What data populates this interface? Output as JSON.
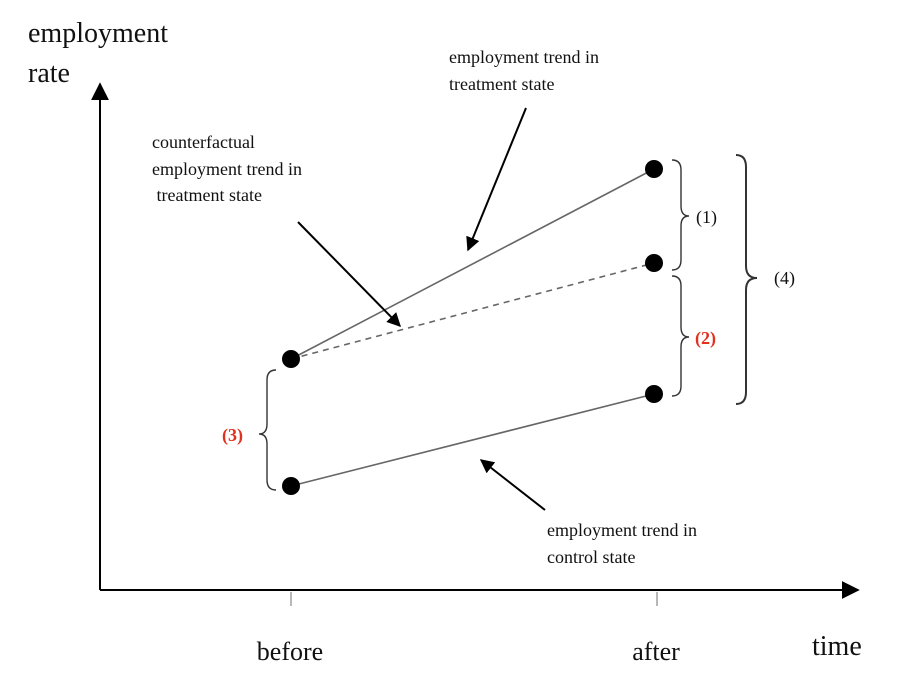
{
  "axes": {
    "y_label_line1": "employment",
    "y_label_line2": "rate",
    "x_label": "time",
    "x_ticks": [
      "before",
      "after"
    ]
  },
  "annotations": {
    "treatment": [
      "employment trend in",
      "treatment state"
    ],
    "counterfactual": [
      "counterfactual",
      "employment trend in",
      " treatment state"
    ],
    "control": [
      "employment trend in",
      "control state"
    ]
  },
  "braces": {
    "b1": "(1)",
    "b2": "(2)",
    "b3": "(3)",
    "b4": "(4)"
  },
  "colors": {
    "emphasis": "#e0301e",
    "trend_line": "#666666"
  }
}
